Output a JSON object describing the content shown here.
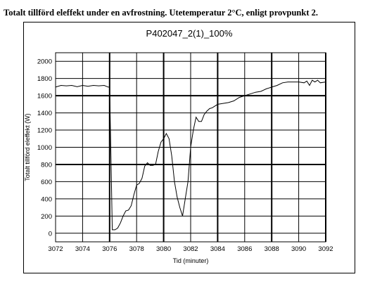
{
  "caption": "Totalt tillförd eleffekt under en avfrostning. Utetemperatur 2°C, enligt provpunkt 2.",
  "chart_data": {
    "type": "line",
    "title": "P402047_2(1)_100%",
    "xlabel": "Tid (minuter)",
    "ylabel": "Totalt tillförd eleffekt (W)",
    "xlim": [
      3072,
      3092
    ],
    "ylim": [
      -100,
      2100
    ],
    "xticks": [
      3072,
      3074,
      3076,
      3078,
      3080,
      3082,
      3084,
      3086,
      3088,
      3090,
      3092
    ],
    "yticks": [
      0,
      200,
      400,
      600,
      800,
      1000,
      1200,
      1400,
      1600,
      1800,
      2000
    ],
    "xtick_labels": [
      "3072",
      "3074",
      "3076",
      "3078",
      "3080",
      "3082",
      "3084",
      "3086",
      "3088",
      "3090",
      "3092"
    ],
    "ytick_labels": [
      "0",
      "200",
      "400",
      "600",
      "800",
      "1000",
      "1200",
      "1400",
      "1600",
      "1800",
      "2000"
    ],
    "grid": true,
    "legend": "none",
    "series": [
      {
        "color": "#000000",
        "x": [
          3072.0,
          3072.4,
          3072.8,
          3073.2,
          3073.6,
          3074.0,
          3074.4,
          3074.8,
          3075.2,
          3075.6,
          3075.9,
          3076.0,
          3076.1,
          3076.2,
          3076.4,
          3076.6,
          3076.8,
          3077.0,
          3077.2,
          3077.4,
          3077.6,
          3077.8,
          3078.0,
          3078.2,
          3078.4,
          3078.6,
          3078.8,
          3079.0,
          3079.2,
          3079.4,
          3079.6,
          3079.8,
          3080.0,
          3080.2,
          3080.4,
          3080.6,
          3080.8,
          3081.0,
          3081.2,
          3081.4,
          3081.6,
          3081.8,
          3081.9,
          3082.0,
          3082.2,
          3082.4,
          3082.6,
          3082.8,
          3083.0,
          3083.2,
          3083.4,
          3083.6,
          3083.8,
          3084.0,
          3084.4,
          3084.8,
          3085.2,
          3085.6,
          3086.0,
          3086.4,
          3086.8,
          3087.2,
          3087.6,
          3088.0,
          3088.4,
          3088.8,
          3089.2,
          3089.6,
          3090.0,
          3090.4,
          3090.6,
          3090.8,
          3091.0,
          3091.2,
          3091.4,
          3091.6,
          3092.0
        ],
        "y": [
          1700,
          1720,
          1715,
          1720,
          1705,
          1720,
          1710,
          1720,
          1715,
          1720,
          1700,
          1700,
          900,
          40,
          40,
          60,
          120,
          200,
          260,
          270,
          320,
          450,
          560,
          580,
          640,
          780,
          820,
          790,
          790,
          800,
          950,
          1060,
          1100,
          1160,
          1100,
          900,
          600,
          420,
          300,
          200,
          400,
          600,
          800,
          1000,
          1200,
          1350,
          1300,
          1300,
          1380,
          1420,
          1450,
          1460,
          1480,
          1500,
          1510,
          1520,
          1540,
          1580,
          1600,
          1620,
          1640,
          1650,
          1680,
          1700,
          1720,
          1750,
          1760,
          1760,
          1760,
          1750,
          1770,
          1720,
          1780,
          1760,
          1780,
          1750,
          1760
        ]
      }
    ]
  }
}
